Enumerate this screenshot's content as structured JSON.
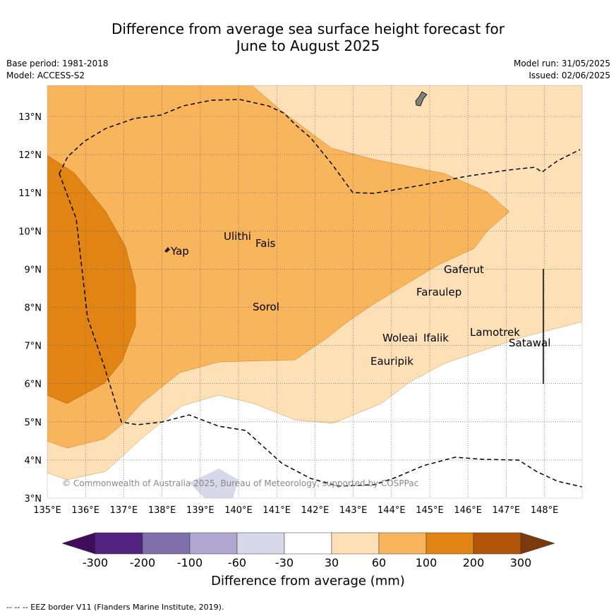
{
  "title_line1": "Difference from average sea surface height forecast for",
  "title_line2": "June to August 2025",
  "base_period": "Base period: 1981-2018",
  "model": "Model: ACCESS-S2",
  "model_run": "Model run: 31/05/2025",
  "issued": "Issued: 02/06/2025",
  "copyright": "© Commonwealth of Australia 2025, Bureau of Meteorology, supported by COSPPac",
  "lat_labels": [
    "13°N",
    "12°N",
    "11°N",
    "10°N",
    "9°N",
    "8°N",
    "7°N",
    "6°N",
    "5°N",
    "4°N",
    "3°N"
  ],
  "lon_labels": [
    "135°E",
    "136°E",
    "137°E",
    "138°E",
    "139°E",
    "140°E",
    "141°E",
    "142°E",
    "143°E",
    "144°E",
    "145°E",
    "146°E",
    "147°E",
    "148°E"
  ],
  "places": {
    "yap": "Yap",
    "ulithi": "Ulithi",
    "fais": "Fais",
    "sorol": "Sorol",
    "gaferut": "Gaferut",
    "faraulep": "Faraulep",
    "woleai": "Woleai",
    "ifalik": "Ifalik",
    "lamotrek": "Lamotrek",
    "satawal": "Satawal",
    "eauripik": "Eauripik"
  },
  "colorbar": {
    "labels": [
      "-300",
      "-200",
      "-100",
      "-60",
      "-30",
      "30",
      "60",
      "100",
      "200",
      "300"
    ],
    "colors": [
      "#3f0d5c",
      "#52227f",
      "#7f6fab",
      "#b0a8d2",
      "#d8d8eb",
      "#ffffff",
      "#fde0b6",
      "#f8b55c",
      "#e18414",
      "#b05508",
      "#7a3a0c"
    ],
    "title": "Difference from average (mm)"
  },
  "footnote": "--  --  -- EEZ border V11 (Flanders Marine Institute, 2019)."
}
